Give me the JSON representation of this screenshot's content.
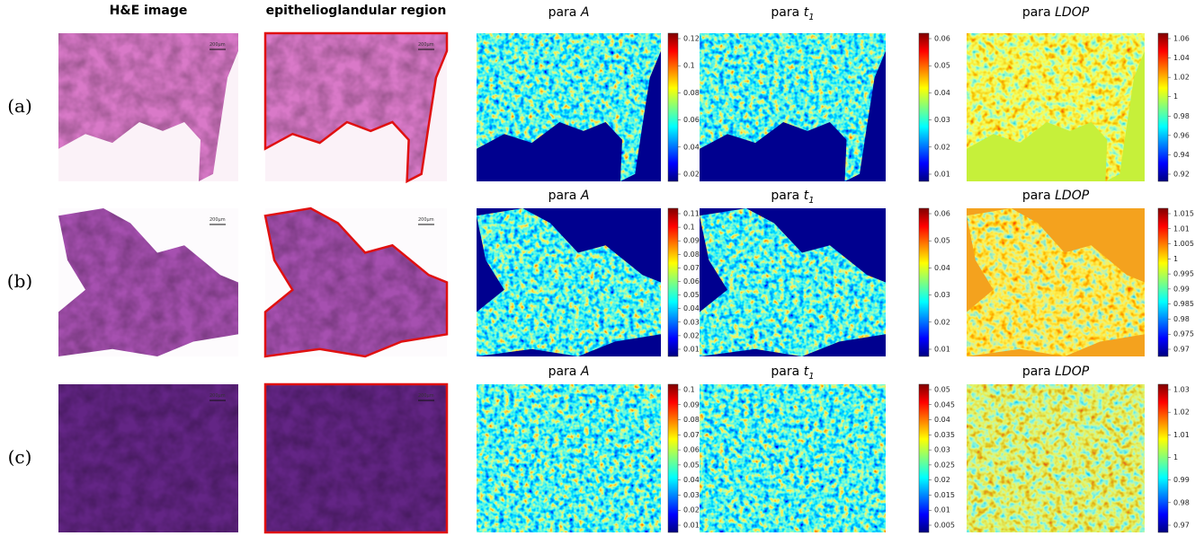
{
  "column_headers": [
    "H&E image",
    "epithelioglandular region"
  ],
  "rows": [
    {
      "label": "(a)",
      "scale_bar": "200μm",
      "panels": [
        {
          "title": "para",
          "param": "A",
          "ticks": [
            "0.12",
            "0.1",
            "0.08",
            "0.06",
            "0.04",
            "0.02"
          ]
        },
        {
          "title": "para",
          "param": "t",
          "sub": "1",
          "ticks": [
            "0.06",
            "0.05",
            "0.04",
            "0.03",
            "0.02",
            "0.01"
          ]
        },
        {
          "title": "para",
          "param": "LDOP",
          "ticks": [
            "1.06",
            "1.04",
            "1.02",
            "1",
            "0.98",
            "0.96",
            "0.94",
            "0.92"
          ]
        }
      ]
    },
    {
      "label": "(b)",
      "scale_bar": "200μm",
      "panels": [
        {
          "title": "para",
          "param": "A",
          "ticks": [
            "0.11",
            "0.1",
            "0.09",
            "0.08",
            "0.07",
            "0.06",
            "0.05",
            "0.04",
            "0.03",
            "0.02",
            "0.01"
          ]
        },
        {
          "title": "para",
          "param": "t",
          "sub": "1",
          "ticks": [
            "0.06",
            "0.05",
            "0.04",
            "0.03",
            "0.02",
            "0.01"
          ]
        },
        {
          "title": "para",
          "param": "LDOP",
          "ticks": [
            "1.015",
            "1.01",
            "1.005",
            "1",
            "0.995",
            "0.99",
            "0.985",
            "0.98",
            "0.975",
            "0.97"
          ]
        }
      ]
    },
    {
      "label": "(c)",
      "scale_bar": "200μm",
      "panels": [
        {
          "title": "para",
          "param": "A",
          "ticks": [
            "0.1",
            "0.09",
            "0.08",
            "0.07",
            "0.06",
            "0.05",
            "0.04",
            "0.03",
            "0.02",
            "0.01"
          ]
        },
        {
          "title": "para",
          "param": "t",
          "sub": "1",
          "ticks": [
            "0.05",
            "0.045",
            "0.04",
            "0.035",
            "0.03",
            "0.025",
            "0.02",
            "0.015",
            "0.01",
            "0.005"
          ]
        },
        {
          "title": "para",
          "param": "LDOP",
          "ticks": [
            "1.03",
            "1.02",
            "1.01",
            "1",
            "0.99",
            "0.98",
            "0.97"
          ]
        }
      ]
    }
  ]
}
